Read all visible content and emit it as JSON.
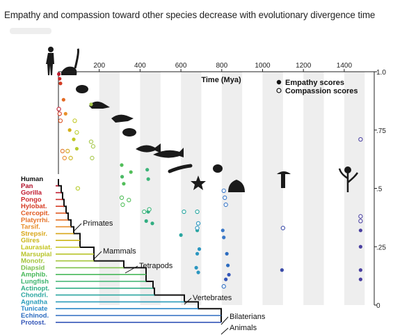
{
  "page": {
    "title": "Empathy and compassion toward other species decrease with evolutionary divergence time"
  },
  "chart_data": {
    "type": "scatter",
    "title": "",
    "xlabel": "Time (Mya)",
    "ylabel": "",
    "xlim": [
      0,
      1500
    ],
    "ylim": [
      0,
      1.0
    ],
    "x_ticks": [
      200,
      400,
      600,
      800,
      1000,
      1200,
      1400
    ],
    "y_ticks": [
      {
        "value": 1.0,
        "label": "1.0"
      },
      {
        "value": 0.75,
        "label": ".75"
      },
      {
        "value": 0.5,
        "label": ".5"
      },
      {
        "value": 0.25,
        "label": ".25"
      },
      {
        "value": 0,
        "label": "0"
      }
    ],
    "grid_bands": true,
    "legend_position": "top-right",
    "series": [
      {
        "name": "Empathy scores",
        "marker": "filled",
        "points": [
          {
            "x": 2,
            "y": 0.99,
            "c": "#c01a2e"
          },
          {
            "x": 6,
            "y": 0.97,
            "c": "#c82a2a"
          },
          {
            "x": 10,
            "y": 0.95,
            "c": "#d23a22"
          },
          {
            "x": 25,
            "y": 0.88,
            "c": "#e36a22"
          },
          {
            "x": 35,
            "y": 0.82,
            "c": "#e8902a"
          },
          {
            "x": 55,
            "y": 0.75,
            "c": "#d4b018"
          },
          {
            "x": 75,
            "y": 0.71,
            "c": "#c2c822"
          },
          {
            "x": 90,
            "y": 0.67,
            "c": "#b8cc2e"
          },
          {
            "x": 160,
            "y": 0.86,
            "c": "#a6c84a"
          },
          {
            "x": 310,
            "y": 0.6,
            "c": "#52be5a"
          },
          {
            "x": 312,
            "y": 0.55,
            "c": "#4cba66"
          },
          {
            "x": 320,
            "y": 0.52,
            "c": "#52be5a"
          },
          {
            "x": 355,
            "y": 0.57,
            "c": "#52be5a"
          },
          {
            "x": 435,
            "y": 0.58,
            "c": "#3cb478"
          },
          {
            "x": 440,
            "y": 0.54,
            "c": "#3cb478"
          },
          {
            "x": 430,
            "y": 0.36,
            "c": "#32ae82"
          },
          {
            "x": 440,
            "y": 0.4,
            "c": "#32ae82"
          },
          {
            "x": 460,
            "y": 0.35,
            "c": "#32ae82"
          },
          {
            "x": 600,
            "y": 0.3,
            "c": "#2aa6a0"
          },
          {
            "x": 680,
            "y": 0.32,
            "c": "#2aa6a0"
          },
          {
            "x": 680,
            "y": 0.22,
            "c": "#2a96c0"
          },
          {
            "x": 690,
            "y": 0.24,
            "c": "#2a96c0"
          },
          {
            "x": 675,
            "y": 0.16,
            "c": "#2a96c0"
          },
          {
            "x": 685,
            "y": 0.14,
            "c": "#2a96c0"
          },
          {
            "x": 825,
            "y": 0.22,
            "c": "#2c6cc0"
          },
          {
            "x": 830,
            "y": 0.17,
            "c": "#2c6cc0"
          },
          {
            "x": 835,
            "y": 0.13,
            "c": "#3456b8"
          },
          {
            "x": 820,
            "y": 0.11,
            "c": "#3456b8"
          },
          {
            "x": 805,
            "y": 0.32,
            "c": "#3a78c8"
          },
          {
            "x": 810,
            "y": 0.29,
            "c": "#3a78c8"
          },
          {
            "x": 1095,
            "y": 0.15,
            "c": "#3a4aa8"
          },
          {
            "x": 1480,
            "y": 0.32,
            "c": "#4a40a0"
          },
          {
            "x": 1480,
            "y": 0.25,
            "c": "#4a40a0"
          },
          {
            "x": 1480,
            "y": 0.15,
            "c": "#4a40a0"
          },
          {
            "x": 1480,
            "y": 0.11,
            "c": "#4a40a0"
          }
        ]
      },
      {
        "name": "Compassion scores",
        "marker": "hollow",
        "points": [
          {
            "x": 2,
            "y": 0.84,
            "c": "#c01a2e"
          },
          {
            "x": 6,
            "y": 0.82,
            "c": "#d23a22"
          },
          {
            "x": 10,
            "y": 0.79,
            "c": "#d85020"
          },
          {
            "x": 20,
            "y": 0.66,
            "c": "#e0762a"
          },
          {
            "x": 30,
            "y": 0.63,
            "c": "#e88a2a"
          },
          {
            "x": 45,
            "y": 0.66,
            "c": "#d4a418"
          },
          {
            "x": 60,
            "y": 0.63,
            "c": "#c8b418"
          },
          {
            "x": 80,
            "y": 0.79,
            "c": "#c2c822"
          },
          {
            "x": 90,
            "y": 0.74,
            "c": "#b8cc2e"
          },
          {
            "x": 95,
            "y": 0.5,
            "c": "#b8cc2e"
          },
          {
            "x": 160,
            "y": 0.7,
            "c": "#a6c84a"
          },
          {
            "x": 170,
            "y": 0.68,
            "c": "#a6c84a"
          },
          {
            "x": 165,
            "y": 0.63,
            "c": "#a6c84a"
          },
          {
            "x": 310,
            "y": 0.46,
            "c": "#52be5a"
          },
          {
            "x": 315,
            "y": 0.43,
            "c": "#52be5a"
          },
          {
            "x": 345,
            "y": 0.45,
            "c": "#52be5a"
          },
          {
            "x": 420,
            "y": 0.4,
            "c": "#3cb478"
          },
          {
            "x": 445,
            "y": 0.41,
            "c": "#3cb478"
          },
          {
            "x": 615,
            "y": 0.4,
            "c": "#2aa6a0"
          },
          {
            "x": 680,
            "y": 0.4,
            "c": "#2aa6a0"
          },
          {
            "x": 685,
            "y": 0.35,
            "c": "#2a96c0"
          },
          {
            "x": 680,
            "y": 0.33,
            "c": "#2a96c0"
          },
          {
            "x": 810,
            "y": 0.49,
            "c": "#3a78c8"
          },
          {
            "x": 815,
            "y": 0.46,
            "c": "#3a78c8"
          },
          {
            "x": 820,
            "y": 0.43,
            "c": "#3a78c8"
          },
          {
            "x": 810,
            "y": 0.08,
            "c": "#2c6cc0"
          },
          {
            "x": 1100,
            "y": 0.33,
            "c": "#3a4aa8"
          },
          {
            "x": 1480,
            "y": 0.71,
            "c": "#4a40a0"
          },
          {
            "x": 1480,
            "y": 0.38,
            "c": "#4a40a0"
          },
          {
            "x": 1480,
            "y": 0.36,
            "c": "#4a40a0"
          }
        ]
      }
    ],
    "species": [
      {
        "name": "Human",
        "color": "#111111"
      },
      {
        "name": "Pan",
        "color": "#b0102a"
      },
      {
        "name": "Gorilla",
        "color": "#c01a2e"
      },
      {
        "name": "Pongo",
        "color": "#cc2a2a"
      },
      {
        "name": "Hylobat.",
        "color": "#d63c24"
      },
      {
        "name": "Cercopit.",
        "color": "#e05a22"
      },
      {
        "name": "Platyrrhi.",
        "color": "#e6742a"
      },
      {
        "name": "Tarsif.",
        "color": "#e88e2a"
      },
      {
        "name": "Strepsir.",
        "color": "#d8a618"
      },
      {
        "name": "Glires",
        "color": "#ccb618"
      },
      {
        "name": "Laurasiat.",
        "color": "#c4c41e"
      },
      {
        "name": "Marsupial",
        "color": "#b8c42a"
      },
      {
        "name": "Monotr.",
        "color": "#a4c43a"
      },
      {
        "name": "Diapsid",
        "color": "#7cc04a"
      },
      {
        "name": "Amphib.",
        "color": "#48b85a"
      },
      {
        "name": "Lungfish",
        "color": "#3cb46e"
      },
      {
        "name": "Actinopt.",
        "color": "#30ae86"
      },
      {
        "name": "Chondri.",
        "color": "#2aa6a0"
      },
      {
        "name": "Agnatha",
        "color": "#2a9cba"
      },
      {
        "name": "Tunicate",
        "color": "#2a88c8"
      },
      {
        "name": "Echinod.",
        "color": "#2c6cc0"
      },
      {
        "name": "Protost.",
        "color": "#3456b8"
      }
    ],
    "clade_labels": [
      "Primates",
      "Mammals",
      "Tetrapods",
      "Vertebrates",
      "Bilaterians",
      "Animals"
    ]
  }
}
